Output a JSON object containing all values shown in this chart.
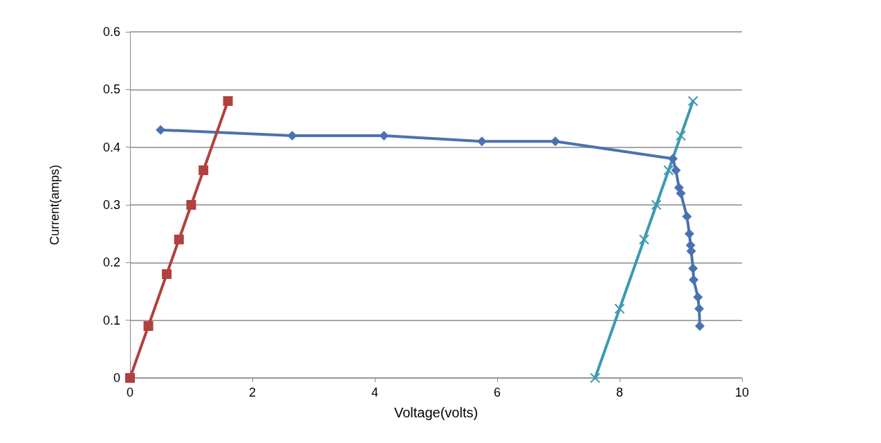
{
  "chart_data": {
    "type": "line",
    "xlabel": "Voltage(volts)",
    "ylabel": "Current(amps)",
    "xlim": [
      0,
      10
    ],
    "xticks": [
      0,
      2,
      4,
      6,
      8,
      10
    ],
    "ylim": [
      0,
      0.6
    ],
    "yticks": [
      0,
      0.1,
      0.2,
      0.3,
      0.4,
      0.5,
      0.6
    ],
    "grid": "y",
    "series": [
      {
        "color": "#4a72b0",
        "marker": "diamond",
        "x": [
          0.5,
          2.65,
          4.15,
          5.75,
          6.95,
          8.87,
          8.92,
          8.97,
          9.0,
          9.1,
          9.14,
          9.16,
          9.17,
          9.2,
          9.21,
          9.28,
          9.3,
          9.31
        ],
        "values": [
          0.43,
          0.42,
          0.42,
          0.41,
          0.41,
          0.38,
          0.36,
          0.33,
          0.32,
          0.28,
          0.25,
          0.23,
          0.22,
          0.19,
          0.17,
          0.14,
          0.12,
          0.09
        ]
      },
      {
        "color": "#b0413e",
        "marker": "square",
        "x": [
          0,
          0.3,
          0.6,
          0.8,
          1.0,
          1.2,
          1.6
        ],
        "values": [
          0,
          0.09,
          0.18,
          0.24,
          0.3,
          0.36,
          0.48
        ]
      },
      {
        "color": "#3a9ab0",
        "marker": "cross",
        "x": [
          7.6,
          8.0,
          8.4,
          8.6,
          8.8,
          9.0,
          9.2
        ],
        "values": [
          0,
          0.12,
          0.24,
          0.3,
          0.36,
          0.42,
          0.48
        ]
      }
    ]
  }
}
